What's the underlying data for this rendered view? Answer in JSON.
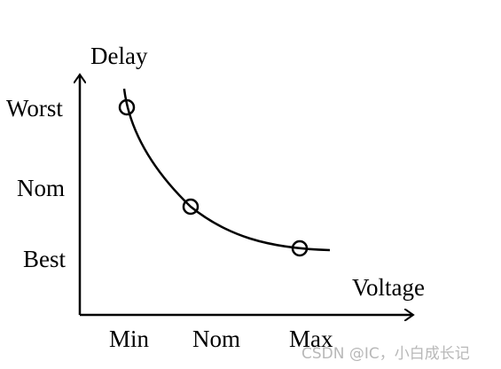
{
  "chart_data": {
    "type": "line",
    "title": "",
    "xlabel": "Voltage",
    "ylabel": "Delay",
    "x_categories": [
      "Min",
      "Nom",
      "Max"
    ],
    "y_categories": [
      "Worst",
      "Nom",
      "Best"
    ],
    "points": [
      {
        "x": "Min",
        "y": "Worst"
      },
      {
        "x": "Nom",
        "y": "Nom"
      },
      {
        "x": "Max",
        "y": "Best"
      }
    ],
    "grid": false,
    "legend": "none",
    "marker": "open-circle",
    "line_color": "#000000"
  },
  "watermark": "CSDN @IC，小白成长记"
}
